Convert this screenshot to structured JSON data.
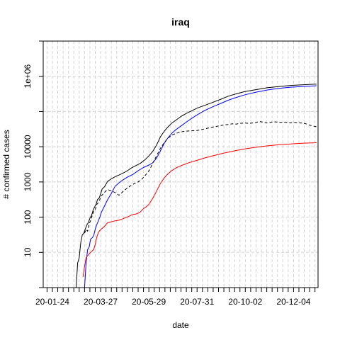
{
  "chart_data": {
    "type": "line",
    "title": "iraq",
    "xlabel": "date",
    "ylabel": "# confirmed cases",
    "y_scale": "log10",
    "ylim": [
      1,
      10000000
    ],
    "xlim": [
      "2020-01-12",
      "2021-01-05"
    ],
    "grid": true,
    "legend": "none",
    "x_tick_labels": [
      {
        "date": "2020-01-24",
        "label": "20-01-24"
      },
      {
        "date": "2020-03-27",
        "label": "20-03-27"
      },
      {
        "date": "2020-05-29",
        "label": "20-05-29"
      },
      {
        "date": "2020-07-31",
        "label": "20-07-31"
      },
      {
        "date": "2020-10-02",
        "label": "20-10-02"
      },
      {
        "date": "2020-12-04",
        "label": "20-12-04"
      }
    ],
    "y_tick_labels": [
      {
        "value": 10,
        "label": "10"
      },
      {
        "value": 100,
        "label": "100"
      },
      {
        "value": 1000,
        "label": "1000"
      },
      {
        "value": 10000,
        "label": "10000"
      },
      {
        "value": 1000000,
        "label": "1e+06"
      }
    ],
    "series": [
      {
        "color": "#000000",
        "dash": "solid",
        "points": [
          [
            "2020-02-24",
            1
          ],
          [
            "2020-02-26",
            5
          ],
          [
            "2020-02-28",
            7
          ],
          [
            "2020-03-01",
            19
          ],
          [
            "2020-03-03",
            31
          ],
          [
            "2020-03-05",
            35
          ],
          [
            "2020-03-07",
            46
          ],
          [
            "2020-03-09",
            60
          ],
          [
            "2020-03-11",
            71
          ],
          [
            "2020-03-13",
            93
          ],
          [
            "2020-03-15",
            110
          ],
          [
            "2020-03-17",
            154
          ],
          [
            "2020-03-19",
            192
          ],
          [
            "2020-03-21",
            233
          ],
          [
            "2020-03-23",
            316
          ],
          [
            "2020-03-25",
            346
          ],
          [
            "2020-03-27",
            458
          ],
          [
            "2020-03-29",
            630
          ],
          [
            "2020-04-01",
            728
          ],
          [
            "2020-04-05",
            1031
          ],
          [
            "2020-04-10",
            1232
          ],
          [
            "2020-04-15",
            1415
          ],
          [
            "2020-04-20",
            1574
          ],
          [
            "2020-04-25",
            1763
          ],
          [
            "2020-05-01",
            2085
          ],
          [
            "2020-05-06",
            2480
          ],
          [
            "2020-05-12",
            2913
          ],
          [
            "2020-05-18",
            3404
          ],
          [
            "2020-05-24",
            4272
          ],
          [
            "2020-05-29",
            5457
          ],
          [
            "2020-06-03",
            7387
          ],
          [
            "2020-06-08",
            11098
          ],
          [
            "2020-06-13",
            18950
          ],
          [
            "2020-06-18",
            27352
          ],
          [
            "2020-06-23",
            36702
          ],
          [
            "2020-06-28",
            47151
          ],
          [
            "2020-07-03",
            56220
          ],
          [
            "2020-07-10",
            72460
          ],
          [
            "2020-07-17",
            88170
          ],
          [
            "2020-07-24",
            104711
          ],
          [
            "2020-07-31",
            124609
          ],
          [
            "2020-08-10",
            150115
          ],
          [
            "2020-08-20",
            180590
          ],
          [
            "2020-08-31",
            223612
          ],
          [
            "2020-09-10",
            273821
          ],
          [
            "2020-09-20",
            317941
          ],
          [
            "2020-10-02",
            370960
          ],
          [
            "2020-10-15",
            413215
          ],
          [
            "2020-10-31",
            474106
          ],
          [
            "2020-11-15",
            513593
          ],
          [
            "2020-11-30",
            551245
          ],
          [
            "2020-12-15",
            574780
          ],
          [
            "2020-12-31",
            595291
          ],
          [
            "2021-01-03",
            597000
          ]
        ]
      },
      {
        "color": "#0000ff",
        "dash": "solid",
        "points": [
          [
            "2020-03-06",
            1
          ],
          [
            "2020-03-08",
            5
          ],
          [
            "2020-03-10",
            12
          ],
          [
            "2020-03-12",
            14
          ],
          [
            "2020-03-14",
            24
          ],
          [
            "2020-03-16",
            26
          ],
          [
            "2020-03-18",
            30
          ],
          [
            "2020-03-20",
            46
          ],
          [
            "2020-03-22",
            62
          ],
          [
            "2020-03-24",
            78
          ],
          [
            "2020-03-26",
            101
          ],
          [
            "2020-03-28",
            137
          ],
          [
            "2020-03-31",
            187
          ],
          [
            "2020-04-05",
            311
          ],
          [
            "2020-04-10",
            472
          ],
          [
            "2020-04-15",
            761
          ],
          [
            "2020-04-20",
            945
          ],
          [
            "2020-04-25",
            1134
          ],
          [
            "2020-05-01",
            1366
          ],
          [
            "2020-05-08",
            1627
          ],
          [
            "2020-05-15",
            2087
          ],
          [
            "2020-05-22",
            2562
          ],
          [
            "2020-05-29",
            3021
          ],
          [
            "2020-06-03",
            3481
          ],
          [
            "2020-06-08",
            4760
          ],
          [
            "2020-06-13",
            7500
          ],
          [
            "2020-06-18",
            12500
          ],
          [
            "2020-06-23",
            18000
          ],
          [
            "2020-06-28",
            24000
          ],
          [
            "2020-07-03",
            30200
          ],
          [
            "2020-07-10",
            39000
          ],
          [
            "2020-07-17",
            50000
          ],
          [
            "2020-07-24",
            64000
          ],
          [
            "2020-07-31",
            80000
          ],
          [
            "2020-08-10",
            107000
          ],
          [
            "2020-08-20",
            135000
          ],
          [
            "2020-08-31",
            170000
          ],
          [
            "2020-09-10",
            210000
          ],
          [
            "2020-09-20",
            250000
          ],
          [
            "2020-10-02",
            300000
          ],
          [
            "2020-10-15",
            350000
          ],
          [
            "2020-10-31",
            410000
          ],
          [
            "2020-11-15",
            455000
          ],
          [
            "2020-11-30",
            490000
          ],
          [
            "2020-12-15",
            512000
          ],
          [
            "2020-12-31",
            535000
          ],
          [
            "2021-01-03",
            540000
          ]
        ]
      },
      {
        "color": "#000000",
        "dash": "dashed",
        "points": [
          [
            "2020-03-06",
            35
          ],
          [
            "2020-03-08",
            45
          ],
          [
            "2020-03-10",
            40
          ],
          [
            "2020-03-12",
            65
          ],
          [
            "2020-03-14",
            80
          ],
          [
            "2020-03-16",
            110
          ],
          [
            "2020-03-18",
            150
          ],
          [
            "2020-03-20",
            165
          ],
          [
            "2020-03-22",
            230
          ],
          [
            "2020-03-24",
            260
          ],
          [
            "2020-03-26",
            320
          ],
          [
            "2020-03-28",
            400
          ],
          [
            "2020-03-31",
            480
          ],
          [
            "2020-04-03",
            560
          ],
          [
            "2020-04-06",
            600
          ],
          [
            "2020-04-10",
            560
          ],
          [
            "2020-04-15",
            500
          ],
          [
            "2020-04-20",
            420
          ],
          [
            "2020-04-24",
            500
          ],
          [
            "2020-04-28",
            600
          ],
          [
            "2020-05-04",
            750
          ],
          [
            "2020-05-10",
            900
          ],
          [
            "2020-05-15",
            1000
          ],
          [
            "2020-05-20",
            1200
          ],
          [
            "2020-05-25",
            1600
          ],
          [
            "2020-05-30",
            2200
          ],
          [
            "2020-06-03",
            3400
          ],
          [
            "2020-06-08",
            5500
          ],
          [
            "2020-06-13",
            9000
          ],
          [
            "2020-06-18",
            13000
          ],
          [
            "2020-06-23",
            17500
          ],
          [
            "2020-06-28",
            21500
          ],
          [
            "2020-07-05",
            24500
          ],
          [
            "2020-07-12",
            27000
          ],
          [
            "2020-07-20",
            28000
          ],
          [
            "2020-07-31",
            29000
          ],
          [
            "2020-08-10",
            32000
          ],
          [
            "2020-08-20",
            36000
          ],
          [
            "2020-08-31",
            40000
          ],
          [
            "2020-09-05",
            42000
          ],
          [
            "2020-09-10",
            43000
          ],
          [
            "2020-09-15",
            45000
          ],
          [
            "2020-09-20",
            44000
          ],
          [
            "2020-09-25",
            46000
          ],
          [
            "2020-10-02",
            47000
          ],
          [
            "2020-10-07",
            46000
          ],
          [
            "2020-10-15",
            48000
          ],
          [
            "2020-10-20",
            52000
          ],
          [
            "2020-10-25",
            50000
          ],
          [
            "2020-10-31",
            47000
          ],
          [
            "2020-11-05",
            50000
          ],
          [
            "2020-11-10",
            51000
          ],
          [
            "2020-11-15",
            49000
          ],
          [
            "2020-11-20",
            50000
          ],
          [
            "2020-11-25",
            49000
          ],
          [
            "2020-11-30",
            48000
          ],
          [
            "2020-12-05",
            49000
          ],
          [
            "2020-12-10",
            48000
          ],
          [
            "2020-12-15",
            47000
          ],
          [
            "2020-12-20",
            45000
          ],
          [
            "2020-12-25",
            41000
          ],
          [
            "2020-12-31",
            38000
          ],
          [
            "2021-01-03",
            37000
          ]
        ]
      },
      {
        "color": "#ff0000",
        "dash": "solid",
        "points": [
          [
            "2020-03-04",
            2
          ],
          [
            "2020-03-06",
            4
          ],
          [
            "2020-03-08",
            7
          ],
          [
            "2020-03-10",
            8
          ],
          [
            "2020-03-12",
            9
          ],
          [
            "2020-03-14",
            10
          ],
          [
            "2020-03-16",
            11
          ],
          [
            "2020-03-18",
            12
          ],
          [
            "2020-03-20",
            17
          ],
          [
            "2020-03-22",
            27
          ],
          [
            "2020-03-24",
            36
          ],
          [
            "2020-03-26",
            42
          ],
          [
            "2020-03-28",
            46
          ],
          [
            "2020-03-31",
            52
          ],
          [
            "2020-04-05",
            69
          ],
          [
            "2020-04-10",
            74
          ],
          [
            "2020-04-15",
            79
          ],
          [
            "2020-04-20",
            82
          ],
          [
            "2020-04-25",
            90
          ],
          [
            "2020-05-01",
            101
          ],
          [
            "2020-05-07",
            117
          ],
          [
            "2020-05-12",
            123
          ],
          [
            "2020-05-17",
            135
          ],
          [
            "2020-05-22",
            175
          ],
          [
            "2020-05-26",
            200
          ],
          [
            "2020-05-29",
            230
          ],
          [
            "2020-06-03",
            340
          ],
          [
            "2020-06-08",
            550
          ],
          [
            "2020-06-13",
            900
          ],
          [
            "2020-06-18",
            1300
          ],
          [
            "2020-06-23",
            1700
          ],
          [
            "2020-06-28",
            2100
          ],
          [
            "2020-07-05",
            2600
          ],
          [
            "2020-07-12",
            3000
          ],
          [
            "2020-07-20",
            3500
          ],
          [
            "2020-07-31",
            4100
          ],
          [
            "2020-08-10",
            4800
          ],
          [
            "2020-08-20",
            5500
          ],
          [
            "2020-08-31",
            6300
          ],
          [
            "2020-09-10",
            7000
          ],
          [
            "2020-09-20",
            7800
          ],
          [
            "2020-10-02",
            8700
          ],
          [
            "2020-10-15",
            9600
          ],
          [
            "2020-10-31",
            10600
          ],
          [
            "2020-11-15",
            11400
          ],
          [
            "2020-11-30",
            12000
          ],
          [
            "2020-12-15",
            12500
          ],
          [
            "2020-12-31",
            12900
          ],
          [
            "2021-01-03",
            13000
          ]
        ]
      }
    ]
  }
}
